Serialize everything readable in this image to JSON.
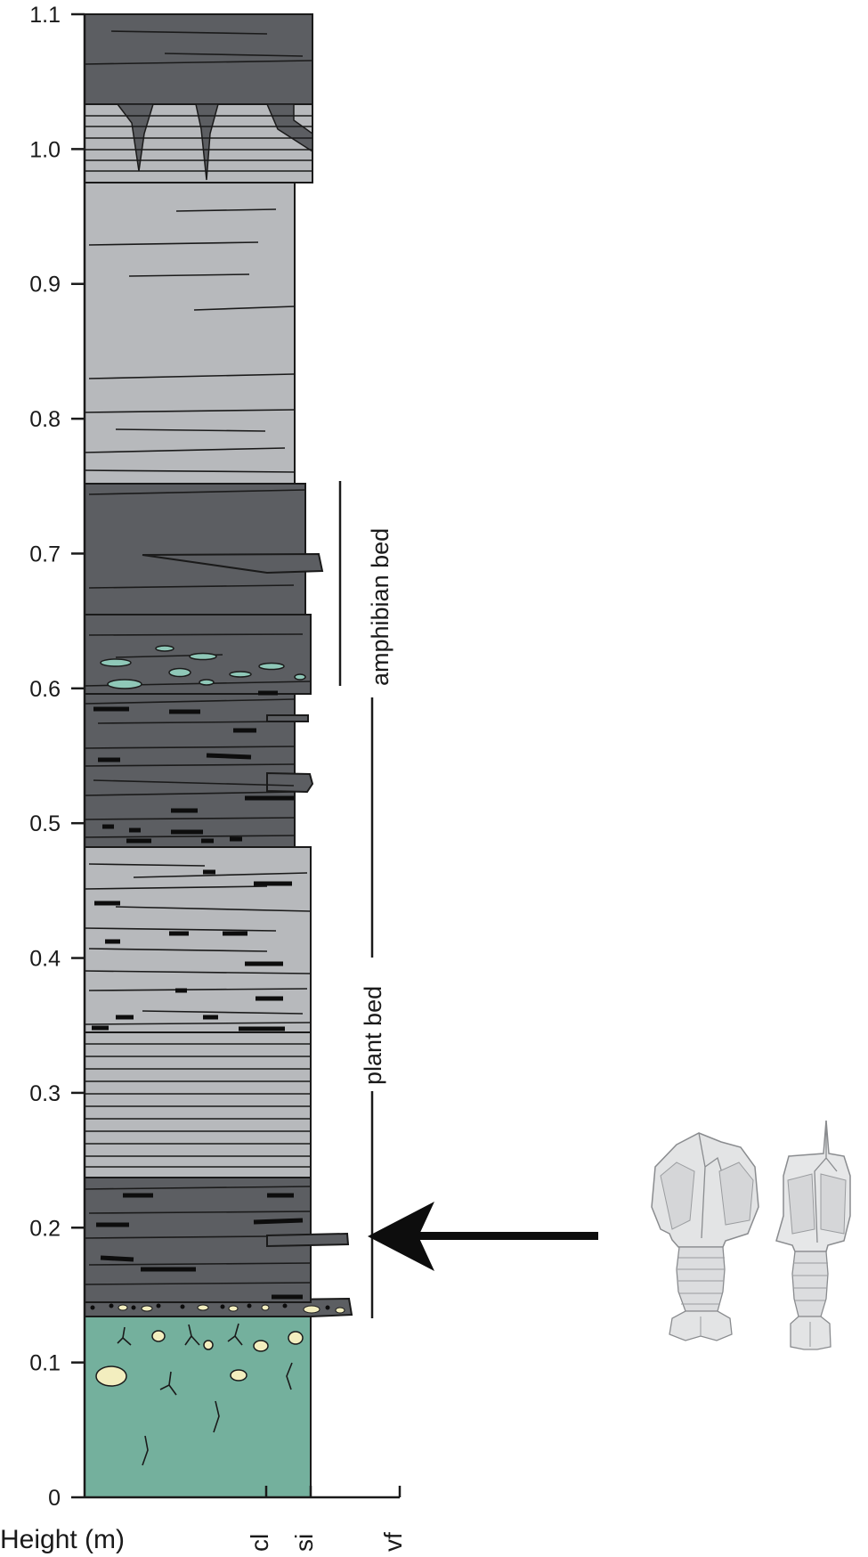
{
  "axis": {
    "title": "Height (m)",
    "unit": "m",
    "range": [
      0,
      1.1
    ],
    "ticks": [
      "0",
      "0.1",
      "0.2",
      "0.3",
      "0.4",
      "0.5",
      "0.6",
      "0.7",
      "0.8",
      "0.9",
      "1.0",
      "1.1"
    ]
  },
  "grain_scale": {
    "labels": [
      "cl",
      "si",
      "vf"
    ]
  },
  "beds": [
    {
      "label": "amphibian bed",
      "from": 0.6,
      "to": 0.755
    },
    {
      "label": "plant bed",
      "from": 0.135,
      "to": 0.59
    }
  ],
  "colors": {
    "dark_shale": "#5c5e62",
    "grey_siltstone": "#b7b9bc",
    "green_paleosol": "#74b09d",
    "nodules": "#f3eebf",
    "green_lenses": "#8fc8b8",
    "line": "#1a1a1a"
  },
  "fossil_marker": {
    "icon": "arrow-left-icon",
    "height": 0.195,
    "illustration": "fossil-arthropod-illustrations"
  }
}
